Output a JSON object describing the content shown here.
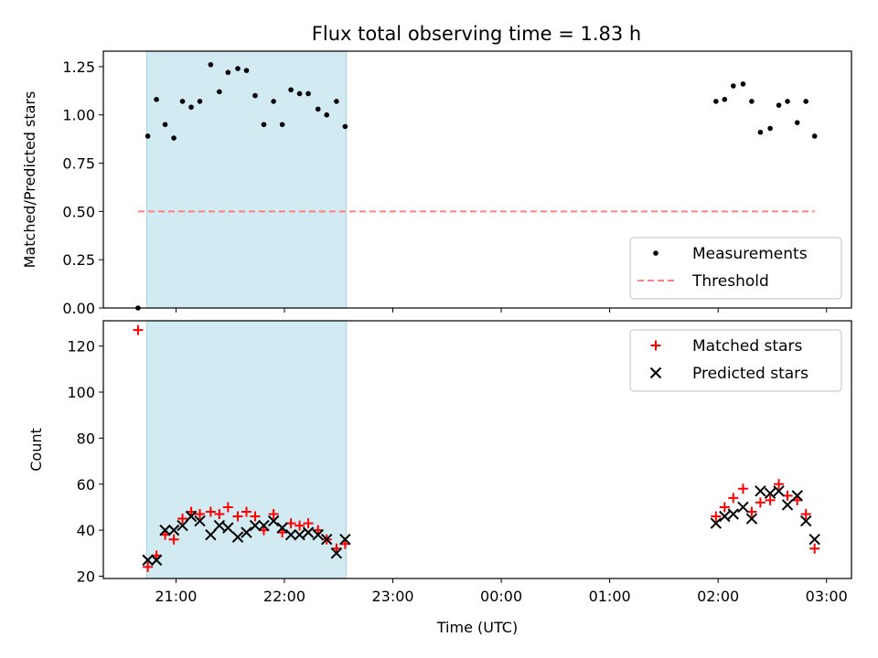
{
  "title": "Flux total observing time = 1.83 h",
  "colors": {
    "shade": "#add8e6",
    "measurement": "#000000",
    "threshold": "#ff8080",
    "matched": "#ff0000",
    "predicted": "#000000"
  },
  "chart_data": [
    {
      "type": "scatter",
      "title": "Flux total observing time = 1.83 h",
      "xlabel": "",
      "ylabel": "Matched/Predicted stars",
      "x_unit": "hours since 20:00 UTC",
      "xlim": [
        20.33,
        27.23
      ],
      "ylim": [
        0.0,
        1.33
      ],
      "yticks": [
        0.0,
        0.25,
        0.5,
        0.75,
        1.0,
        1.25
      ],
      "ytick_labels": [
        "0.00",
        "0.25",
        "0.50",
        "0.75",
        "1.00",
        "1.25"
      ],
      "shaded_span": {
        "x": [
          20.73,
          22.57
        ]
      },
      "legend": {
        "position": "lower-right",
        "entries": [
          "Measurements",
          "Threshold"
        ]
      },
      "series": [
        {
          "name": "Measurements",
          "marker": "dot",
          "points": [
            [
              20.65,
              0.0
            ],
            [
              20.74,
              0.89
            ],
            [
              20.82,
              1.08
            ],
            [
              20.9,
              0.95
            ],
            [
              20.98,
              0.88
            ],
            [
              21.06,
              1.07
            ],
            [
              21.14,
              1.04
            ],
            [
              21.22,
              1.07
            ],
            [
              21.32,
              1.26
            ],
            [
              21.4,
              1.12
            ],
            [
              21.48,
              1.22
            ],
            [
              21.57,
              1.24
            ],
            [
              21.65,
              1.23
            ],
            [
              21.73,
              1.1
            ],
            [
              21.81,
              0.95
            ],
            [
              21.9,
              1.07
            ],
            [
              21.98,
              0.95
            ],
            [
              22.06,
              1.13
            ],
            [
              22.14,
              1.11
            ],
            [
              22.22,
              1.11
            ],
            [
              22.31,
              1.03
            ],
            [
              22.39,
              1.0
            ],
            [
              22.48,
              1.07
            ],
            [
              22.56,
              0.94
            ],
            [
              25.98,
              1.07
            ],
            [
              26.06,
              1.08
            ],
            [
              26.14,
              1.15
            ],
            [
              26.23,
              1.16
            ],
            [
              26.31,
              1.07
            ],
            [
              26.39,
              0.91
            ],
            [
              26.48,
              0.93
            ],
            [
              26.56,
              1.05
            ],
            [
              26.64,
              1.07
            ],
            [
              26.73,
              0.96
            ],
            [
              26.81,
              1.07
            ],
            [
              26.89,
              0.89
            ]
          ]
        },
        {
          "name": "Threshold",
          "style": "dashed",
          "points": [
            [
              20.65,
              0.5
            ],
            [
              26.89,
              0.5
            ]
          ]
        }
      ]
    },
    {
      "type": "scatter",
      "xlabel": "Time (UTC)",
      "ylabel": "Count",
      "x_unit": "hours since 20:00 UTC",
      "xlim": [
        20.33,
        27.23
      ],
      "ylim": [
        19,
        131
      ],
      "xticks": [
        21,
        22,
        23,
        24,
        25,
        26,
        27
      ],
      "xtick_labels": [
        "21:00",
        "22:00",
        "23:00",
        "00:00",
        "01:00",
        "02:00",
        "03:00"
      ],
      "yticks": [
        20,
        40,
        60,
        80,
        100,
        120
      ],
      "ytick_labels": [
        "20",
        "40",
        "60",
        "80",
        "100",
        "120"
      ],
      "shaded_span": {
        "x": [
          20.73,
          22.57
        ]
      },
      "legend": {
        "position": "top-right",
        "entries": [
          "Matched stars",
          "Predicted stars"
        ]
      },
      "series": [
        {
          "name": "Matched stars",
          "marker": "plus",
          "points": [
            [
              20.65,
              127
            ],
            [
              20.74,
              24
            ],
            [
              20.82,
              29
            ],
            [
              20.9,
              38
            ],
            [
              20.98,
              36
            ],
            [
              21.06,
              45
            ],
            [
              21.14,
              48
            ],
            [
              21.22,
              47
            ],
            [
              21.32,
              48
            ],
            [
              21.4,
              47
            ],
            [
              21.48,
              50
            ],
            [
              21.57,
              46
            ],
            [
              21.65,
              48
            ],
            [
              21.73,
              46
            ],
            [
              21.81,
              40
            ],
            [
              21.9,
              47
            ],
            [
              21.98,
              39
            ],
            [
              22.06,
              43
            ],
            [
              22.14,
              42
            ],
            [
              22.22,
              43
            ],
            [
              22.31,
              40
            ],
            [
              22.39,
              36
            ],
            [
              22.48,
              32
            ],
            [
              22.56,
              34
            ],
            [
              25.98,
              46
            ],
            [
              26.06,
              50
            ],
            [
              26.14,
              54
            ],
            [
              26.23,
              58
            ],
            [
              26.31,
              48
            ],
            [
              26.39,
              52
            ],
            [
              26.48,
              53
            ],
            [
              26.56,
              60
            ],
            [
              26.64,
              55
            ],
            [
              26.73,
              53
            ],
            [
              26.81,
              47
            ],
            [
              26.89,
              32
            ]
          ]
        },
        {
          "name": "Predicted stars",
          "marker": "x",
          "points": [
            [
              20.74,
              27
            ],
            [
              20.82,
              27
            ],
            [
              20.9,
              40
            ],
            [
              20.98,
              40
            ],
            [
              21.06,
              42
            ],
            [
              21.14,
              46
            ],
            [
              21.22,
              44
            ],
            [
              21.32,
              38
            ],
            [
              21.4,
              42
            ],
            [
              21.48,
              41
            ],
            [
              21.57,
              37
            ],
            [
              21.65,
              39
            ],
            [
              21.73,
              42
            ],
            [
              21.81,
              42
            ],
            [
              21.9,
              44
            ],
            [
              21.98,
              41
            ],
            [
              22.06,
              38
            ],
            [
              22.14,
              38
            ],
            [
              22.22,
              39
            ],
            [
              22.31,
              38
            ],
            [
              22.39,
              36
            ],
            [
              22.48,
              30
            ],
            [
              22.56,
              36
            ],
            [
              25.98,
              43
            ],
            [
              26.06,
              46
            ],
            [
              26.14,
              47
            ],
            [
              26.23,
              50
            ],
            [
              26.31,
              45
            ],
            [
              26.39,
              57
            ],
            [
              26.48,
              56
            ],
            [
              26.56,
              57
            ],
            [
              26.64,
              51
            ],
            [
              26.73,
              55
            ],
            [
              26.81,
              44
            ],
            [
              26.89,
              36
            ]
          ]
        }
      ]
    }
  ]
}
